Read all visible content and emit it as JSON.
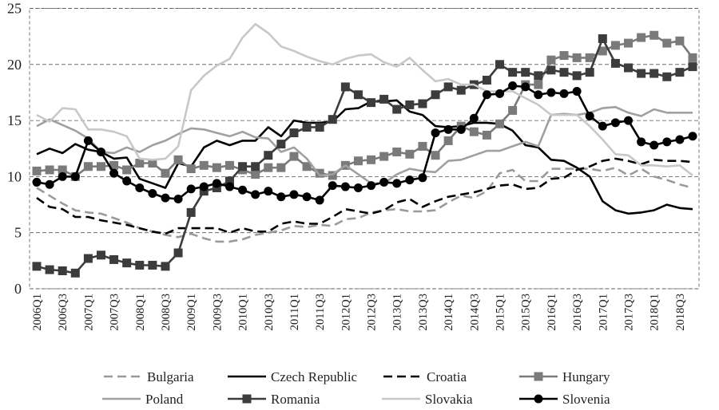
{
  "chart_data": {
    "type": "line",
    "title": "",
    "xlabel": "",
    "ylabel": "",
    "ylim": [
      0,
      25
    ],
    "yticks": [
      "0",
      "5",
      "10",
      "15",
      "20",
      "25"
    ],
    "grid": true,
    "legend_position": "bottom",
    "x": [
      "2006Q1",
      "2006Q2",
      "2006Q3",
      "2006Q4",
      "2007Q1",
      "2007Q2",
      "2007Q3",
      "2007Q4",
      "2008Q1",
      "2008Q2",
      "2008Q3",
      "2008Q4",
      "2009Q1",
      "2009Q2",
      "2009Q3",
      "2009Q4",
      "2010Q1",
      "2010Q2",
      "2010Q3",
      "2010Q4",
      "2011Q1",
      "2011Q2",
      "2011Q3",
      "2011Q4",
      "2012Q1",
      "2012Q2",
      "2012Q3",
      "2012Q4",
      "2013Q1",
      "2013Q2",
      "2013Q3",
      "2013Q4",
      "2014Q1",
      "2014Q2",
      "2014Q3",
      "2014Q4",
      "2015Q1",
      "2015Q2",
      "2015Q3",
      "2015Q4",
      "2016Q1",
      "2016Q2",
      "2016Q3",
      "2016Q4",
      "2017Q1",
      "2017Q2",
      "2017Q3",
      "2017Q4",
      "2018Q1",
      "2018Q2",
      "2018Q3",
      "2018Q4"
    ],
    "series": [
      {
        "name": "Bulgaria",
        "color": "#9a9a9a",
        "style": "dashed",
        "marker": "none",
        "values": [
          9.0,
          8.3,
          7.6,
          7.0,
          6.8,
          6.7,
          6.3,
          5.9,
          5.4,
          5.1,
          4.8,
          4.6,
          4.9,
          4.5,
          4.2,
          4.2,
          4.4,
          4.8,
          5.0,
          5.2,
          5.6,
          5.5,
          5.7,
          5.6,
          6.2,
          6.3,
          6.8,
          7.0,
          7.1,
          6.9,
          6.9,
          7.0,
          7.7,
          8.3,
          8.1,
          8.7,
          10.3,
          10.6,
          9.6,
          9.6,
          10.7,
          10.7,
          10.7,
          10.7,
          10.5,
          10.8,
          10.1,
          10.7,
          10.0,
          9.7,
          9.3,
          9.0
        ]
      },
      {
        "name": "Czech Republic",
        "color": "#000000",
        "style": "solid",
        "marker": "none",
        "values": [
          12.0,
          12.5,
          12.1,
          12.9,
          12.4,
          12.2,
          11.6,
          11.7,
          9.8,
          9.4,
          9.0,
          11.2,
          10.9,
          12.6,
          13.2,
          12.8,
          13.2,
          13.2,
          14.4,
          13.6,
          15.0,
          14.8,
          14.8,
          14.9,
          16.0,
          16.1,
          16.7,
          16.7,
          16.8,
          15.8,
          15.5,
          14.5,
          14.4,
          14.5,
          14.8,
          14.8,
          14.7,
          14.1,
          12.8,
          12.6,
          11.5,
          11.4,
          10.8,
          10.0,
          7.8,
          7.0,
          6.7,
          6.8,
          7.0,
          7.5,
          7.2,
          7.1
        ]
      },
      {
        "name": "Croatia",
        "color": "#000000",
        "style": "dashed",
        "marker": "none",
        "values": [
          8.1,
          7.3,
          7.1,
          6.4,
          6.4,
          6.1,
          5.9,
          5.7,
          5.4,
          5.1,
          4.9,
          5.4,
          5.4,
          5.4,
          5.4,
          5.0,
          5.4,
          5.1,
          5.1,
          5.8,
          6.0,
          5.8,
          5.8,
          6.4,
          7.1,
          6.9,
          6.7,
          7.0,
          7.7,
          8.0,
          7.3,
          7.8,
          8.2,
          8.4,
          8.6,
          8.9,
          9.2,
          9.3,
          8.9,
          9.0,
          9.8,
          9.9,
          10.6,
          10.9,
          11.4,
          11.6,
          11.4,
          11.1,
          11.5,
          11.4,
          11.4,
          11.3
        ]
      },
      {
        "name": "Hungary",
        "color": "#7a7a7a",
        "style": "solid",
        "marker": "square",
        "values": [
          10.5,
          10.6,
          10.6,
          10.0,
          10.9,
          10.9,
          11.0,
          10.6,
          11.2,
          11.2,
          10.3,
          11.5,
          10.7,
          11.0,
          10.8,
          11.0,
          10.6,
          10.2,
          10.8,
          10.8,
          11.8,
          10.9,
          10.3,
          10.1,
          11.0,
          11.4,
          11.5,
          11.8,
          12.2,
          12.0,
          12.7,
          11.9,
          13.2,
          14.5,
          14.0,
          13.7,
          14.7,
          15.9,
          18.2,
          18.2,
          20.4,
          20.8,
          20.6,
          20.6,
          21.2,
          21.7,
          21.9,
          22.4,
          22.6,
          21.9,
          22.1,
          20.6
        ]
      },
      {
        "name": "Poland",
        "color": "#a0a0a0",
        "style": "solid",
        "marker": "none",
        "values": [
          14.5,
          15.1,
          14.6,
          14.1,
          13.4,
          12.2,
          12.1,
          12.6,
          12.2,
          12.8,
          13.2,
          13.8,
          14.3,
          14.2,
          13.9,
          13.6,
          14.0,
          13.5,
          13.4,
          12.2,
          12.6,
          11.6,
          10.1,
          10.2,
          11.0,
          10.2,
          9.4,
          9.4,
          10.2,
          10.7,
          10.5,
          10.4,
          11.4,
          11.5,
          11.9,
          12.3,
          12.3,
          12.7,
          13.1,
          12.7,
          15.5,
          15.6,
          15.5,
          15.7,
          16.1,
          16.2,
          15.7,
          15.4,
          16.0,
          15.7,
          15.7,
          15.7
        ]
      },
      {
        "name": "Romania",
        "color": "#3c3c3c",
        "style": "solid",
        "marker": "square",
        "values": [
          2.0,
          1.7,
          1.6,
          1.4,
          2.7,
          3.0,
          2.6,
          2.3,
          2.1,
          2.1,
          2.0,
          3.2,
          6.8,
          8.7,
          9.0,
          9.6,
          10.9,
          10.9,
          11.9,
          12.9,
          13.9,
          14.4,
          14.4,
          15.1,
          18.0,
          17.3,
          16.6,
          16.9,
          16.0,
          16.4,
          16.5,
          17.3,
          18.0,
          17.7,
          18.2,
          18.6,
          20.0,
          19.3,
          19.3,
          19.0,
          19.5,
          19.3,
          19.0,
          19.3,
          22.3,
          20.1,
          19.7,
          19.2,
          19.2,
          18.9,
          19.3,
          19.8
        ]
      },
      {
        "name": "Slovakia",
        "color": "#c8c8c8",
        "style": "solid",
        "marker": "none",
        "values": [
          15.5,
          14.9,
          16.1,
          16.0,
          14.2,
          14.2,
          14.0,
          13.6,
          11.6,
          11.5,
          11.6,
          12.7,
          17.7,
          19.0,
          19.9,
          20.5,
          22.4,
          23.6,
          22.8,
          21.6,
          21.2,
          20.7,
          20.3,
          20.0,
          20.5,
          20.8,
          20.9,
          20.2,
          19.8,
          20.6,
          19.5,
          18.5,
          18.7,
          18.2,
          18.2,
          17.6,
          17.6,
          17.6,
          17.0,
          16.4,
          15.5,
          15.5,
          15.5,
          14.5,
          13.3,
          12.0,
          11.9,
          11.0,
          11.0,
          10.9,
          11.0,
          10.1
        ]
      },
      {
        "name": "Slovenia",
        "color": "#000000",
        "style": "solid",
        "marker": "circle",
        "values": [
          9.5,
          9.3,
          10.0,
          10.0,
          13.2,
          12.2,
          10.3,
          9.6,
          9.0,
          8.5,
          8.1,
          8.0,
          8.9,
          9.1,
          9.4,
          9.1,
          8.8,
          8.4,
          8.7,
          8.2,
          8.4,
          8.2,
          7.9,
          9.2,
          9.1,
          9.0,
          9.2,
          9.5,
          9.4,
          9.7,
          9.9,
          13.9,
          14.2,
          14.2,
          15.2,
          17.3,
          17.4,
          18.1,
          18.0,
          17.3,
          17.5,
          17.4,
          17.6,
          15.4,
          14.5,
          14.8,
          15.0,
          13.1,
          12.8,
          13.1,
          13.3,
          13.6
        ]
      }
    ]
  }
}
